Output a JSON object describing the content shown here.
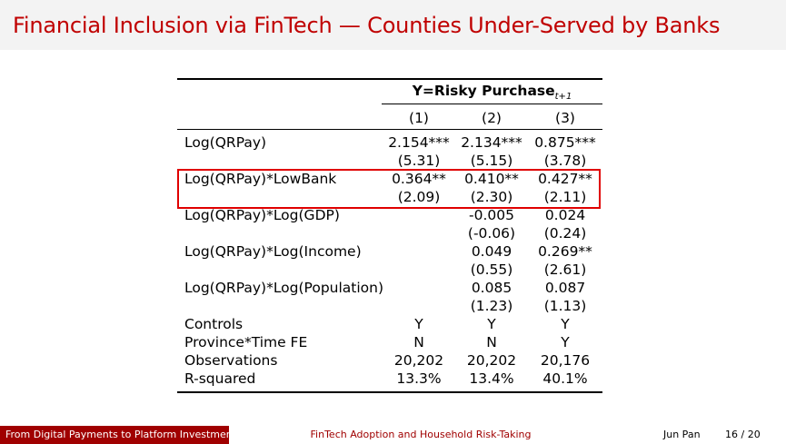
{
  "frame": {
    "title": "Financial Inclusion via FinTech — Counties Under-Served by Banks"
  },
  "table": {
    "dep_var_main": "Y=Risky Purchase",
    "dep_var_sub": "t+1",
    "columns": [
      "(1)",
      "(2)",
      "(3)"
    ],
    "rows": [
      {
        "label": "Log(QRPay)",
        "values": [
          "2.154***",
          "2.134***",
          "0.875***"
        ]
      },
      {
        "label": "",
        "values": [
          "(5.31)",
          "(5.15)",
          "(3.78)"
        ]
      },
      {
        "label": "Log(QRPay)*LowBank",
        "values": [
          "0.364**",
          "0.410**",
          "0.427**"
        ]
      },
      {
        "label": "",
        "values": [
          "(2.09)",
          "(2.30)",
          "(2.11)"
        ]
      },
      {
        "label": "Log(QRPay)*Log(GDP)",
        "values": [
          "",
          "-0.005",
          "0.024"
        ]
      },
      {
        "label": "",
        "values": [
          "",
          "(-0.06)",
          "(0.24)"
        ]
      },
      {
        "label": "Log(QRPay)*Log(Income)",
        "values": [
          "",
          "0.049",
          "0.269**"
        ]
      },
      {
        "label": "",
        "values": [
          "",
          "(0.55)",
          "(2.61)"
        ]
      },
      {
        "label": "Log(QRPay)*Log(Population)",
        "values": [
          "",
          "0.085",
          "0.087"
        ]
      },
      {
        "label": "",
        "values": [
          "",
          "(1.23)",
          "(1.13)"
        ]
      },
      {
        "label": "Controls",
        "values": [
          "Y",
          "Y",
          "Y"
        ]
      },
      {
        "label": "Province*Time FE",
        "values": [
          "N",
          "N",
          "Y"
        ]
      },
      {
        "label": "Observations",
        "values": [
          "20,202",
          "20,202",
          "20,176"
        ]
      },
      {
        "label": "R-squared",
        "values": [
          "13.3%",
          "13.4%",
          "40.1%"
        ]
      }
    ]
  },
  "footer": {
    "left": "From Digital Payments to Platform Investments",
    "middle": "FinTech Adoption and Household Risk-Taking",
    "author": "Jun Pan",
    "page": "16 / 20"
  },
  "colors": {
    "title": "#c00000",
    "footer_left_bg": "#a00000",
    "highlight": "#e00000"
  }
}
